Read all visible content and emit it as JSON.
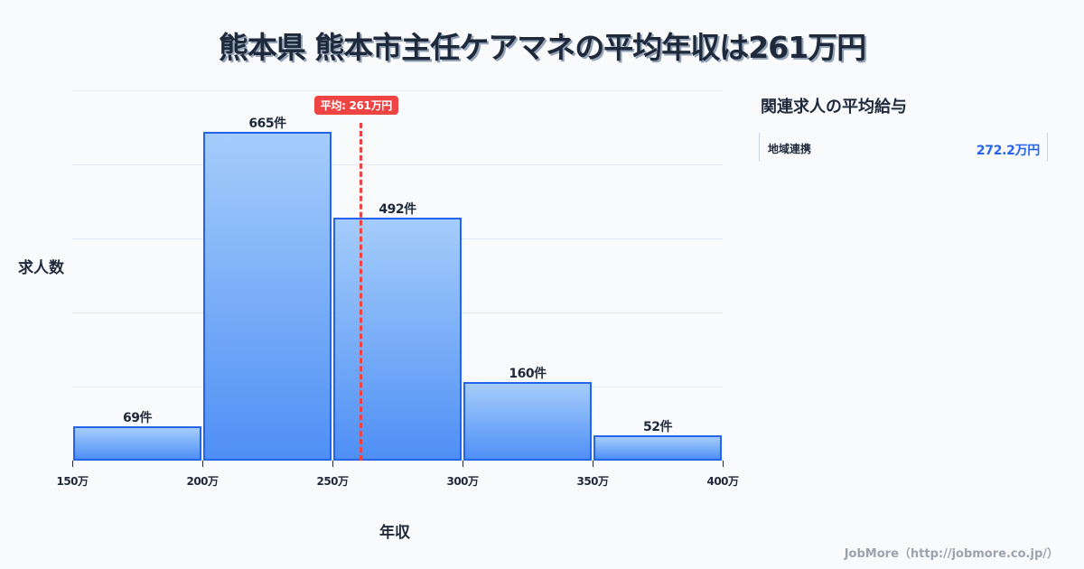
{
  "title": "熊本県 熊本市主任ケアマネの平均年収は261万円",
  "chart_data": {
    "type": "bar",
    "title": "熊本県 熊本市主任ケアマネの平均年収は261万円",
    "xlabel": "年収",
    "ylabel": "求人数",
    "bins": [
      [
        150,
        200
      ],
      [
        200,
        250
      ],
      [
        250,
        300
      ],
      [
        300,
        350
      ],
      [
        350,
        400
      ]
    ],
    "categories": [
      "150-200万",
      "200-250万",
      "250-300万",
      "300-350万",
      "350-400万"
    ],
    "values": [
      69,
      665,
      492,
      160,
      52
    ],
    "value_labels": [
      "69件",
      "665件",
      "492件",
      "160件",
      "52件"
    ],
    "x_ticks": [
      "150万",
      "200万",
      "250万",
      "300万",
      "350万",
      "400万"
    ],
    "xlim": [
      150,
      400
    ],
    "ylim": [
      0,
      750
    ],
    "grid": true,
    "mean": 261,
    "mean_label": "平均: 261万円"
  },
  "side_panel": {
    "title": "関連求人の平均給与",
    "items": [
      {
        "name": "地域連携",
        "value": "272.2万円"
      }
    ]
  },
  "footer": "JobMore（http://jobmore.co.jp/）",
  "colors": {
    "bar_border": "#2563eb",
    "bar_top": "#a5cdfb",
    "bar_bottom": "#4f8ff5",
    "mean": "#ef4444",
    "value_text": "#2563eb"
  }
}
